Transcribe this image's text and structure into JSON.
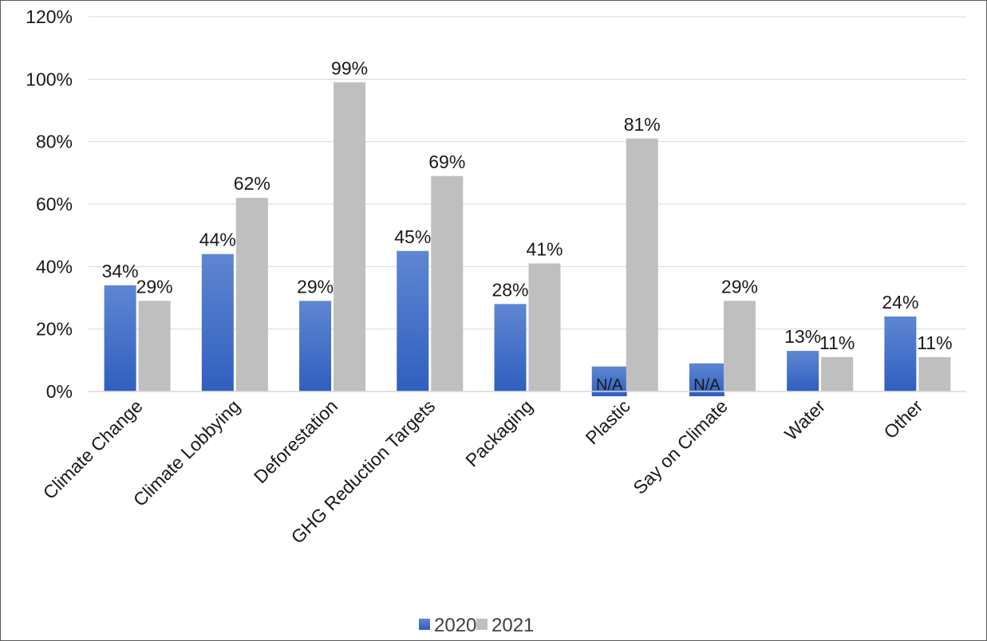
{
  "chart_data": {
    "type": "bar",
    "title": "",
    "xlabel": "",
    "ylabel": "",
    "ylim": [
      0,
      1.2
    ],
    "ytick_step": 0.2,
    "grid": true,
    "legend_position": "bottom",
    "categories": [
      "Climate Change",
      "Climate Lobbying",
      "Deforestation",
      "GHG Reduction Targets",
      "Packaging",
      "Plastic",
      "Say on Climate",
      "Water",
      "Other"
    ],
    "series": [
      {
        "name": "2020",
        "color": "#4472c4",
        "values": [
          0.34,
          0.44,
          0.29,
          0.45,
          0.28,
          null,
          null,
          0.13,
          0.24
        ],
        "labels": [
          "34%",
          "44%",
          "29%",
          "45%",
          "28%",
          "N/A",
          "N/A",
          "13%",
          "24%"
        ],
        "placeholder_values": [
          null,
          null,
          null,
          null,
          null,
          0.08,
          0.09,
          null,
          null
        ]
      },
      {
        "name": "2021",
        "color": "#bfbfbf",
        "values": [
          0.29,
          0.62,
          0.99,
          0.69,
          0.41,
          0.81,
          0.29,
          0.11,
          0.11
        ],
        "labels": [
          "29%",
          "62%",
          "99%",
          "69%",
          "41%",
          "81%",
          "29%",
          "11%",
          "11%"
        ]
      }
    ]
  }
}
